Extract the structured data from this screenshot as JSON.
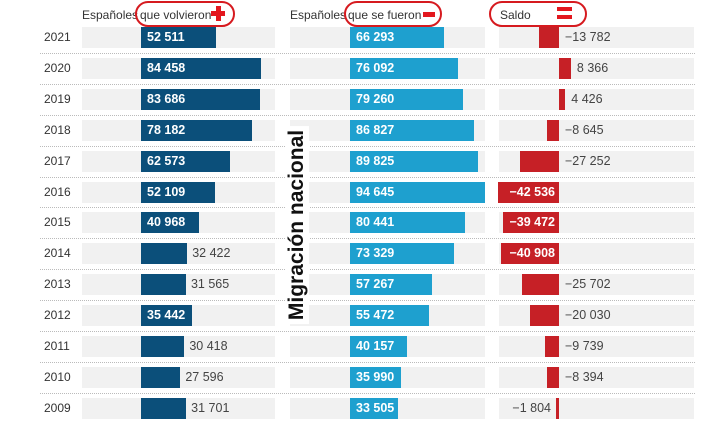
{
  "chart_data": {
    "type": "bar",
    "title": "Migración nacional",
    "categories": [
      "2021",
      "2020",
      "2019",
      "2018",
      "2017",
      "2016",
      "2015",
      "2014",
      "2013",
      "2012",
      "2011",
      "2010",
      "2009"
    ],
    "series": [
      {
        "name": "Españoles que volvieron",
        "symbol": "plus",
        "color": "#0b4f7a",
        "values": [
          52511,
          84458,
          83686,
          78182,
          62573,
          52109,
          40968,
          32422,
          31565,
          35442,
          30418,
          27596,
          31701
        ],
        "labels": [
          "52 511",
          "84 458",
          "83 686",
          "78 182",
          "62 573",
          "52 109",
          "40 968",
          "32 422",
          "31 565",
          "35 442",
          "30 418",
          "27 596",
          "31 701"
        ]
      },
      {
        "name": "Españoles que se fueron",
        "symbol": "minus",
        "color": "#1ea0cf",
        "values": [
          66293,
          76092,
          79260,
          86827,
          89825,
          94645,
          80441,
          73329,
          57267,
          55472,
          40157,
          35990,
          33505
        ],
        "labels": [
          "66 293",
          "76 092",
          "79 260",
          "86 827",
          "89 825",
          "94 645",
          "80 441",
          "73 329",
          "57 267",
          "55 472",
          "40 157",
          "35 990",
          "33 505"
        ]
      },
      {
        "name": "Saldo",
        "symbol": "equals",
        "color": "#c62026",
        "values": [
          -13782,
          8366,
          4426,
          -8645,
          -27252,
          -42536,
          -39472,
          -40908,
          -25702,
          -20030,
          -9739,
          -8394,
          -1804
        ],
        "labels": [
          "−13 782",
          "8 366",
          "4 426",
          "−8 645",
          "−27 252",
          "−42 536",
          "−39 472",
          "−40 908",
          "−25 702",
          "−20 030",
          "−9 739",
          "−8 394",
          "−1 804"
        ]
      }
    ]
  },
  "headers": {
    "prefix": "Españoles",
    "volvieron": "que volvieron",
    "fueron": "que se fueron",
    "saldo": "Saldo"
  }
}
